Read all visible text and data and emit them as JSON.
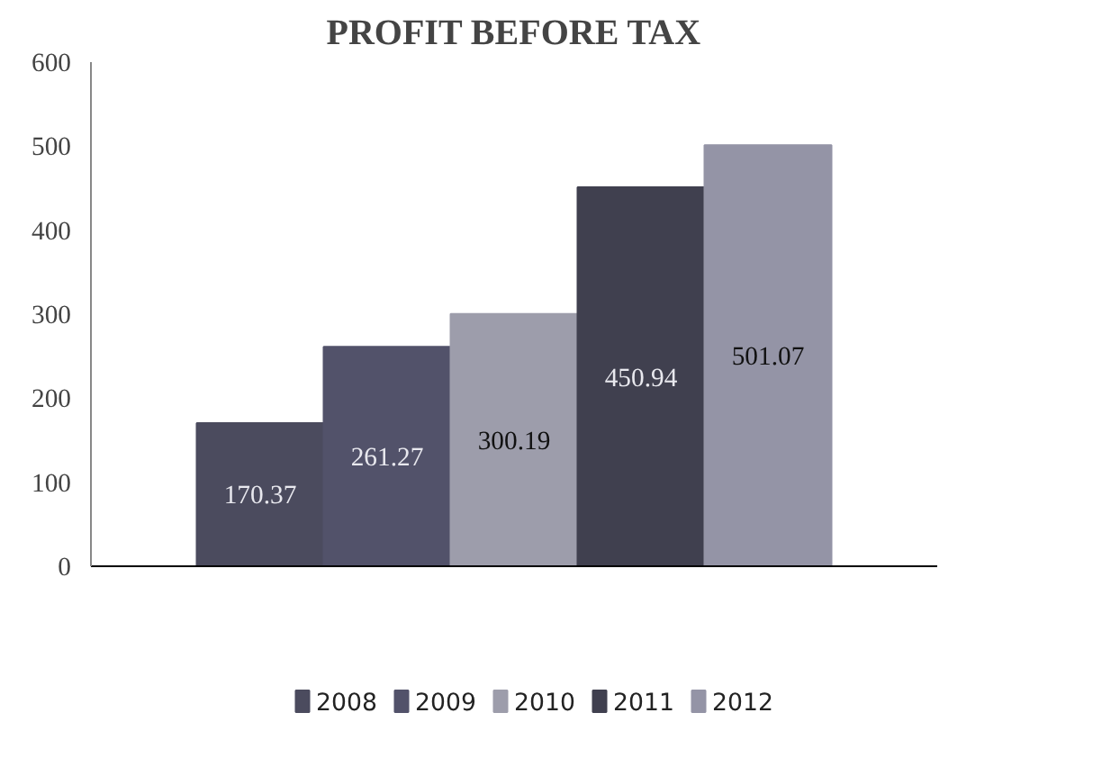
{
  "chart_data": {
    "type": "bar",
    "title": "PROFIT BEFORE TAX",
    "categories": [
      null
    ],
    "series": [
      {
        "name": "2008",
        "color": "#4b4b5e",
        "values": [
          170.37
        ]
      },
      {
        "name": "2009",
        "color": "#52526a",
        "values": [
          261.27
        ]
      },
      {
        "name": "2010",
        "color": "#9d9dab",
        "values": [
          300.19
        ]
      },
      {
        "name": "2011",
        "color": "#40404f",
        "values": [
          450.94
        ]
      },
      {
        "name": "2012",
        "color": "#9494a6",
        "values": [
          501.07
        ]
      }
    ],
    "ylim": [
      0,
      600
    ],
    "yticks": [
      0,
      100,
      200,
      300,
      400,
      500,
      600
    ],
    "data_labels": true,
    "legend": "bottom",
    "grid": false,
    "tick_labels": "y"
  }
}
